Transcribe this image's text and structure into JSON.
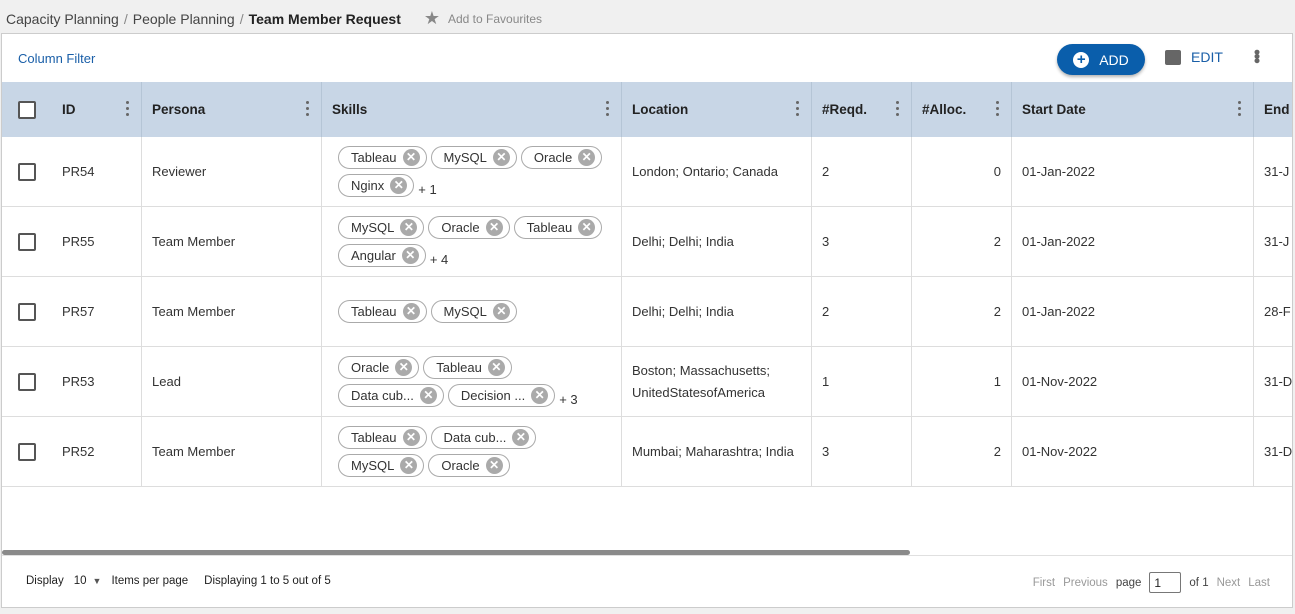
{
  "breadcrumb": {
    "items": [
      "Capacity Planning",
      "People Planning"
    ],
    "current": "Team Member Request",
    "favourite_label": "Add to Favourites"
  },
  "toolbar": {
    "column_filter": "Column Filter",
    "add_label": "ADD",
    "edit_label": "EDIT"
  },
  "colors": {
    "accent": "#0a5eab",
    "header_bg": "#c8d6e6"
  },
  "table": {
    "columns": [
      "ID",
      "Persona",
      "Skills",
      "Location",
      "#Reqd.",
      "#Alloc.",
      "Start Date",
      "End"
    ],
    "rows": [
      {
        "id": "PR54",
        "persona": "Reviewer",
        "skills": [
          "Tableau",
          "MySQL",
          "Oracle",
          "Nginx"
        ],
        "more": "+ 1",
        "location": "London; Ontario; Canada",
        "reqd": "2",
        "alloc": "0",
        "start": "01-Jan-2022",
        "end": "31-J"
      },
      {
        "id": "PR55",
        "persona": "Team Member",
        "skills": [
          "MySQL",
          "Oracle",
          "Tableau",
          "Angular"
        ],
        "more": "+ 4",
        "location": "Delhi; Delhi; India",
        "reqd": "3",
        "alloc": "2",
        "start": "01-Jan-2022",
        "end": "31-J"
      },
      {
        "id": "PR57",
        "persona": "Team Member",
        "skills": [
          "Tableau",
          "MySQL"
        ],
        "more": "",
        "location": "Delhi; Delhi; India",
        "reqd": "2",
        "alloc": "2",
        "start": "01-Jan-2022",
        "end": "28-F"
      },
      {
        "id": "PR53",
        "persona": "Lead",
        "skills": [
          "Oracle",
          "Tableau",
          "Data cub...",
          "Decision ..."
        ],
        "more": "+ 3",
        "location": "Boston; Massachusetts; UnitedStatesofAmerica",
        "reqd": "1",
        "alloc": "1",
        "start": "01-Nov-2022",
        "end": "31-D"
      },
      {
        "id": "PR52",
        "persona": "Team Member",
        "skills": [
          "Tableau",
          "Data cub...",
          "MySQL",
          "Oracle"
        ],
        "more": "",
        "location": "Mumbai; Maharashtra; India",
        "reqd": "3",
        "alloc": "2",
        "start": "01-Nov-2022",
        "end": "31-D"
      }
    ]
  },
  "footer": {
    "display_label": "Display",
    "page_size": "10",
    "items_per_page": "Items per page",
    "summary": "Displaying 1 to 5 out of 5",
    "first": "First",
    "previous": "Previous",
    "page_label": "page",
    "page_value": "1",
    "of_label": "of 1",
    "next": "Next",
    "last": "Last"
  }
}
